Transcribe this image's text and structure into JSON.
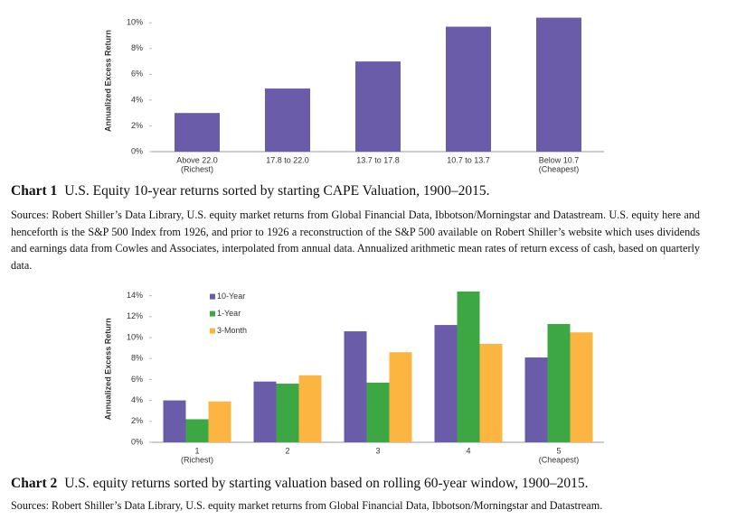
{
  "chart_data": [
    {
      "type": "bar",
      "y_label": "Annualized Excess Return",
      "categories": [
        [
          "Above 22.0",
          "(Richest)"
        ],
        [
          "17.8 to 22.0"
        ],
        [
          "13.7 to 17.8"
        ],
        [
          "10.7 to 13.7"
        ],
        [
          "Below 10.7",
          "(Cheapest)"
        ]
      ],
      "values": [
        3.0,
        4.9,
        7.0,
        9.7,
        10.4
      ],
      "color": "#6a5ca8",
      "ylim": [
        0,
        11
      ],
      "yticks": [
        {
          "value": 0,
          "label": "0%"
        },
        {
          "value": 2,
          "label": "2%"
        },
        {
          "value": 4,
          "label": "4%"
        },
        {
          "value": 6,
          "label": "6%"
        },
        {
          "value": 8,
          "label": "8%"
        },
        {
          "value": 10,
          "label": "10%"
        }
      ],
      "caption_label": "Chart 1",
      "caption": "U.S. Equity 10-year returns sorted by starting CAPE Valuation, 1900–2015.",
      "sources": "Sources: Robert Shiller’s Data Library, U.S. equity market returns from Global Financial Data, Ibbotson/Morningstar and Datastream. U.S. equity here and henceforth is the S&P 500 Index from 1926, and prior to 1926 a reconstruction of the S&P 500 available on Robert Shiller’s website which uses dividends and earnings data from Cowles and Associates, interpolated from annual data. Annualized arithmetic mean rates of return excess of cash, based on quarterly data."
    },
    {
      "type": "grouped_bar",
      "y_label": "Annualized Excess Return",
      "categories": [
        [
          "1",
          "(Richest)"
        ],
        [
          "2"
        ],
        [
          "3"
        ],
        [
          "4"
        ],
        [
          "5",
          "(Cheapest)"
        ]
      ],
      "series": [
        {
          "name": "10-Year",
          "color": "#6a5ca8",
          "values": [
            4.0,
            5.8,
            10.6,
            11.2,
            8.1
          ]
        },
        {
          "name": "1-Year",
          "color": "#3da843",
          "values": [
            2.2,
            5.6,
            5.7,
            14.4,
            11.3
          ]
        },
        {
          "name": "3-Month",
          "color": "#fbb540",
          "values": [
            3.9,
            6.4,
            8.6,
            9.4,
            10.5
          ]
        }
      ],
      "legend": "upper left",
      "ylim": [
        0,
        14
      ],
      "yticks": [
        {
          "value": 0,
          "label": "0%"
        },
        {
          "value": 2,
          "label": "2%"
        },
        {
          "value": 4,
          "label": "4%"
        },
        {
          "value": 6,
          "label": "6%"
        },
        {
          "value": 8,
          "label": "8%"
        },
        {
          "value": 10,
          "label": "10%"
        },
        {
          "value": 12,
          "label": "12%"
        },
        {
          "value": 14,
          "label": "14%"
        }
      ],
      "caption_label": "Chart 2",
      "caption": "U.S. equity returns sorted by starting valuation based on rolling 60-year window, 1900–2015.",
      "sources": "Sources: Robert Shiller’s Data Library, U.S. equity market returns from Global Financial Data, Ibbotson/Morningstar and Datastream."
    }
  ]
}
